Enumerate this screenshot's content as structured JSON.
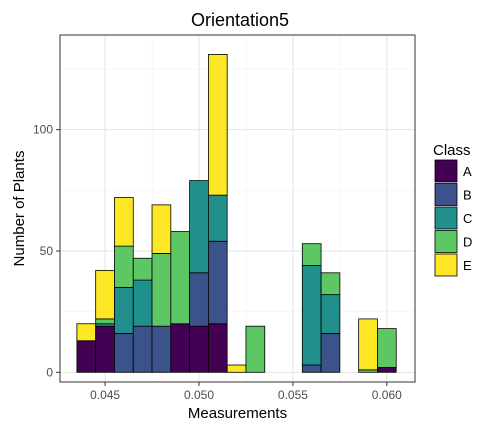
{
  "chart_data": {
    "type": "bar",
    "stacked": true,
    "title": "Orientation5",
    "xlabel": "Measurements",
    "ylabel": "Number of Plants",
    "xlim": [
      0.0426,
      0.0615
    ],
    "ylim": [
      -4,
      139
    ],
    "xticks": [
      0.045,
      0.05,
      0.055,
      0.06
    ],
    "xtick_labels": [
      "0.045",
      "0.050",
      "0.055",
      "0.060"
    ],
    "yticks": [
      0,
      50,
      100
    ],
    "ytick_labels": [
      "0",
      "50",
      "100"
    ],
    "grid": true,
    "legend": {
      "title": "Class",
      "position": "right",
      "entries": [
        "A",
        "B",
        "C",
        "D",
        "E"
      ]
    },
    "colors": {
      "A": "#440154",
      "B": "#3B528B",
      "C": "#21908C",
      "D": "#5DC863",
      "E": "#FDE725"
    },
    "bin_width": 0.001,
    "bin_centers": [
      0.044,
      0.045,
      0.046,
      0.047,
      0.048,
      0.049,
      0.05,
      0.051,
      0.052,
      0.053,
      0.054,
      0.055,
      0.056,
      0.057,
      0.058,
      0.059,
      0.06
    ],
    "series": [
      {
        "name": "A",
        "values": [
          13,
          19,
          0,
          0,
          0,
          20,
          19,
          20,
          0,
          0,
          0,
          0,
          0,
          0,
          0,
          0,
          2
        ]
      },
      {
        "name": "B",
        "values": [
          0,
          0,
          16,
          19,
          19,
          0,
          22,
          34,
          0,
          0,
          0,
          0,
          3,
          16,
          0,
          0,
          0
        ]
      },
      {
        "name": "C",
        "values": [
          0,
          1,
          19,
          19,
          0,
          0,
          38,
          19,
          0,
          0,
          0,
          0,
          41,
          16,
          0,
          0,
          0
        ]
      },
      {
        "name": "D",
        "values": [
          0,
          2,
          17,
          9,
          30,
          38,
          0,
          0,
          0,
          19,
          0,
          0,
          9,
          9,
          0,
          1,
          16
        ]
      },
      {
        "name": "E",
        "values": [
          7,
          20,
          20,
          0,
          20,
          0,
          0,
          58,
          3,
          0,
          0,
          0,
          0,
          0,
          0,
          21,
          0
        ]
      }
    ]
  }
}
